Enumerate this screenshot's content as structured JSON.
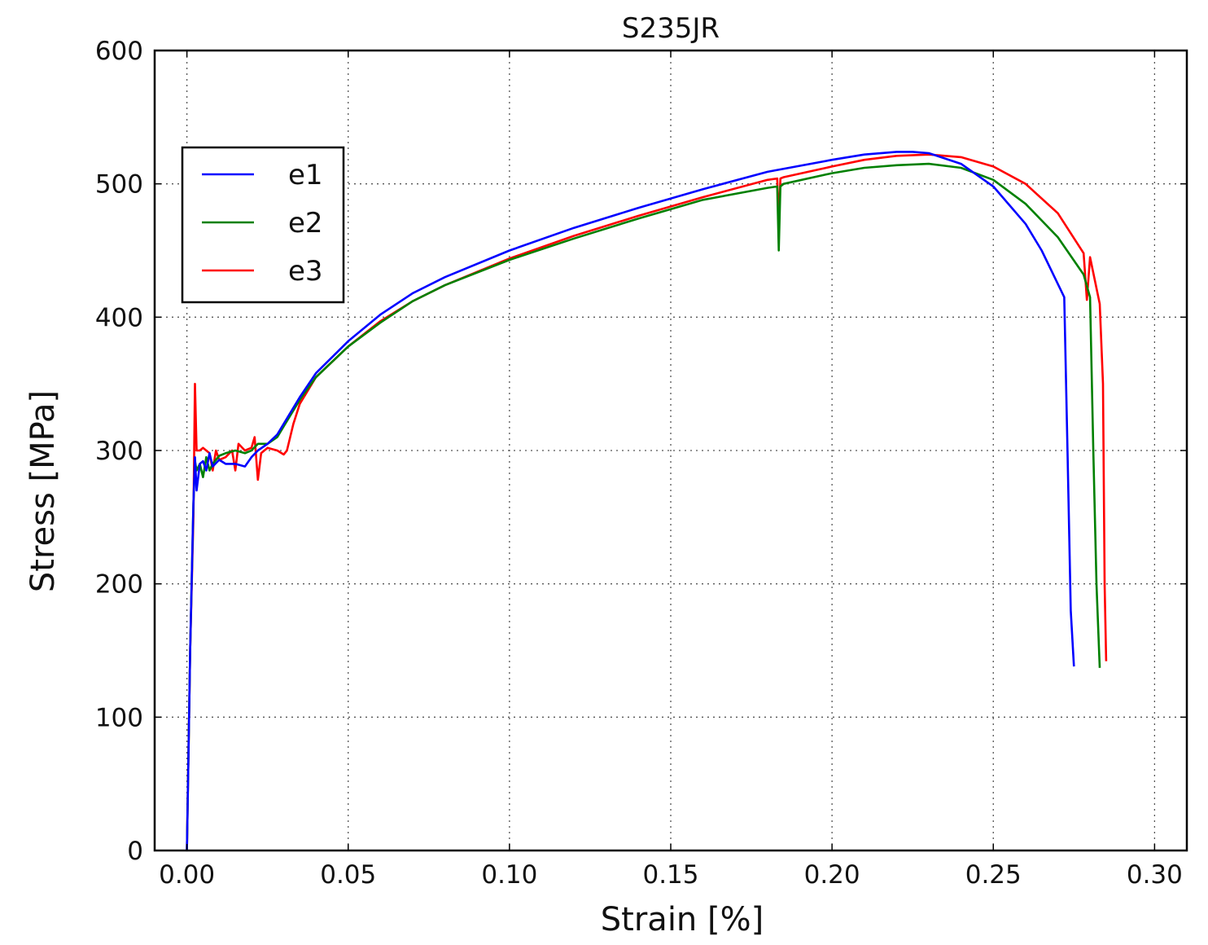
{
  "chart_data": {
    "type": "line",
    "title": "S235JR",
    "xlabel": "Strain [%]",
    "ylabel": "Stress [MPa]",
    "xlim": [
      -0.01,
      0.31
    ],
    "ylim": [
      0,
      600
    ],
    "x_ticks": [
      "0.00",
      "0.05",
      "0.10",
      "0.15",
      "0.20",
      "0.25",
      "0.30"
    ],
    "x_tick_values": [
      0.0,
      0.05,
      0.1,
      0.15,
      0.2,
      0.25,
      0.3
    ],
    "y_ticks": [
      "0",
      "100",
      "200",
      "300",
      "400",
      "500",
      "600"
    ],
    "y_tick_values": [
      0,
      100,
      200,
      300,
      400,
      500,
      600
    ],
    "grid": true,
    "legend_position": "upper-left",
    "series": [
      {
        "name": "e1",
        "color": "#0000ff",
        "x": [
          0.0,
          0.001,
          0.002,
          0.0025,
          0.003,
          0.004,
          0.005,
          0.006,
          0.007,
          0.008,
          0.01,
          0.012,
          0.015,
          0.018,
          0.02,
          0.022,
          0.025,
          0.028,
          0.03,
          0.035,
          0.04,
          0.05,
          0.06,
          0.07,
          0.08,
          0.1,
          0.12,
          0.14,
          0.16,
          0.18,
          0.2,
          0.21,
          0.22,
          0.225,
          0.23,
          0.24,
          0.25,
          0.26,
          0.265,
          0.27,
          0.272,
          0.273,
          0.274,
          0.275
        ],
        "y": [
          0,
          150,
          260,
          295,
          270,
          290,
          292,
          285,
          298,
          288,
          293,
          290,
          290,
          288,
          295,
          300,
          305,
          312,
          320,
          340,
          358,
          382,
          402,
          418,
          430,
          450,
          467,
          482,
          496,
          509,
          518,
          522,
          524,
          524,
          523,
          515,
          498,
          470,
          450,
          425,
          415,
          300,
          180,
          138
        ]
      },
      {
        "name": "e2",
        "color": "#008000",
        "x": [
          0.0,
          0.001,
          0.002,
          0.0025,
          0.003,
          0.004,
          0.005,
          0.006,
          0.007,
          0.008,
          0.01,
          0.012,
          0.015,
          0.018,
          0.02,
          0.022,
          0.025,
          0.028,
          0.03,
          0.035,
          0.04,
          0.05,
          0.06,
          0.07,
          0.08,
          0.1,
          0.12,
          0.14,
          0.16,
          0.18,
          0.183,
          0.1835,
          0.184,
          0.185,
          0.2,
          0.21,
          0.22,
          0.23,
          0.24,
          0.25,
          0.26,
          0.27,
          0.278,
          0.28,
          0.281,
          0.282,
          0.283
        ],
        "y": [
          0,
          150,
          260,
          292,
          285,
          290,
          280,
          295,
          285,
          290,
          296,
          298,
          300,
          298,
          300,
          305,
          305,
          310,
          318,
          338,
          355,
          378,
          396,
          412,
          424,
          443,
          459,
          474,
          488,
          497,
          498,
          450,
          498,
          500,
          508,
          512,
          514,
          515,
          512,
          503,
          485,
          460,
          432,
          415,
          300,
          200,
          137
        ]
      },
      {
        "name": "e3",
        "color": "#ff0000",
        "x": [
          0.0,
          0.001,
          0.002,
          0.0025,
          0.003,
          0.004,
          0.005,
          0.006,
          0.007,
          0.008,
          0.009,
          0.01,
          0.012,
          0.014,
          0.015,
          0.016,
          0.018,
          0.02,
          0.021,
          0.022,
          0.023,
          0.025,
          0.028,
          0.03,
          0.031,
          0.033,
          0.035,
          0.04,
          0.05,
          0.06,
          0.07,
          0.08,
          0.1,
          0.12,
          0.14,
          0.16,
          0.18,
          0.183,
          0.1835,
          0.184,
          0.185,
          0.2,
          0.21,
          0.22,
          0.23,
          0.24,
          0.25,
          0.26,
          0.27,
          0.278,
          0.279,
          0.28,
          0.283,
          0.284,
          0.2845,
          0.285
        ],
        "y": [
          0,
          150,
          250,
          350,
          300,
          300,
          302,
          300,
          298,
          285,
          300,
          293,
          295,
          300,
          285,
          305,
          300,
          302,
          310,
          278,
          298,
          302,
          300,
          297,
          300,
          320,
          335,
          355,
          378,
          397,
          412,
          424,
          444,
          461,
          476,
          490,
          503,
          504,
          470,
          504,
          505,
          513,
          518,
          521,
          522,
          520,
          513,
          500,
          478,
          448,
          413,
          445,
          410,
          350,
          200,
          142
        ]
      }
    ]
  }
}
